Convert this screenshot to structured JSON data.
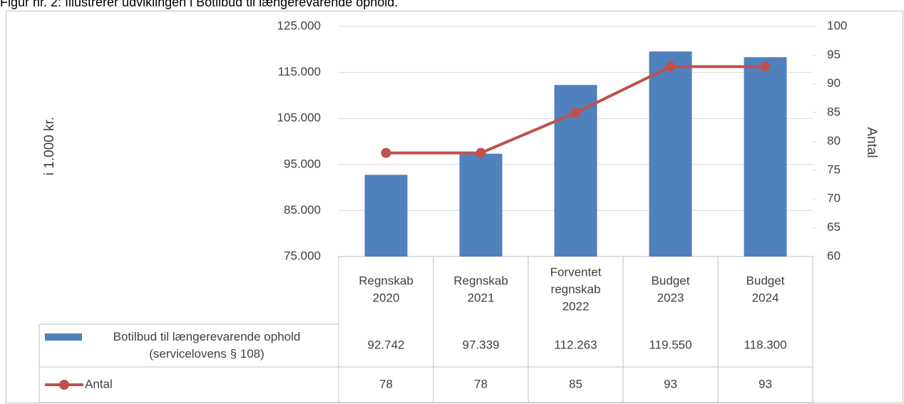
{
  "chart_data": {
    "type": "bar_line_table",
    "title": "Figur nr. 2: Illustrerer udviklingen i Botilbud til længerevarende ophold.",
    "ylabel": "i 1.000 kr.",
    "y2label": "Antal",
    "categories": [
      "Regnskab 2020",
      "Regnskab 2021",
      "Forventet regnskab 2022",
      "Budget 2023",
      "Budget 2024"
    ],
    "ylim": [
      75000,
      125000
    ],
    "yticks": [
      {
        "value": 75000,
        "label": "75.000"
      },
      {
        "value": 85000,
        "label": "85.000"
      },
      {
        "value": 95000,
        "label": "95.000"
      },
      {
        "value": 105000,
        "label": "105.000"
      },
      {
        "value": 115000,
        "label": "115.000"
      },
      {
        "value": 125000,
        "label": "125.000"
      }
    ],
    "y2lim": [
      60,
      100
    ],
    "y2ticks": [
      60,
      65,
      70,
      75,
      80,
      85,
      90,
      95,
      100
    ],
    "grid": true,
    "series": [
      {
        "name": "Botilbud til længerevarende ophold (servicelovens § 108)",
        "color": "#4f81bd",
        "kind": "bar",
        "values": [
          92742,
          97339,
          112263,
          119550,
          118300
        ],
        "value_labels": [
          "92.742",
          "97.339",
          "112.263",
          "119.550",
          "118.300"
        ]
      },
      {
        "name": "Antal",
        "color": "#c0504d",
        "kind": "line",
        "axis": "y2",
        "values": [
          78,
          78,
          85,
          93,
          93
        ]
      }
    ]
  }
}
